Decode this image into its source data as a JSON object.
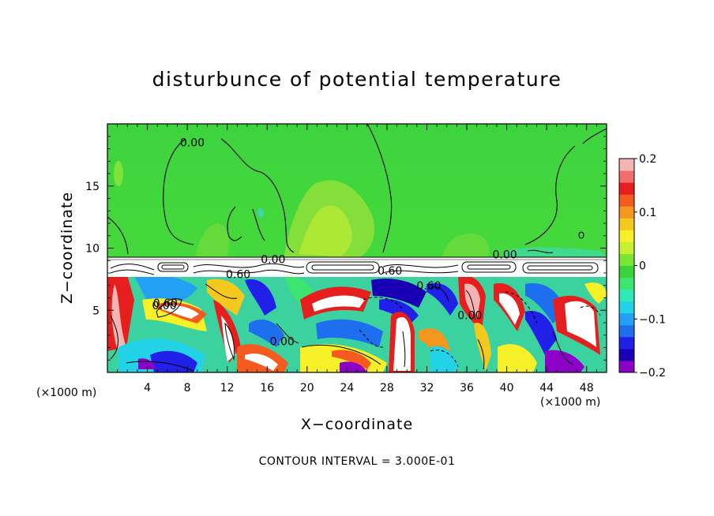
{
  "chart_data": {
    "type": "heatmap",
    "title": "disturbunce of potential temperature",
    "xlabel": "X−coordinate",
    "ylabel": "Z−coordinate",
    "x_unit_left": "(×1000 m)",
    "x_unit_right": "(×1000 m)",
    "xlim": [
      0,
      50
    ],
    "ylim": [
      0,
      20
    ],
    "x_ticks": [
      4,
      8,
      12,
      16,
      20,
      24,
      28,
      32,
      36,
      40,
      44,
      48
    ],
    "y_ticks": [
      5,
      10,
      15
    ],
    "colorbar": {
      "range": [
        -0.2,
        0.2
      ],
      "tick_values": [
        -0.2,
        -0.1,
        0,
        0.1,
        0.2
      ],
      "tick_labels": [
        "−0.2",
        "−0.1",
        "0",
        "0.1",
        "0.2"
      ],
      "colors": [
        "#8c00c8",
        "#1a00b4",
        "#2020e8",
        "#1e6ef0",
        "#21a0f5",
        "#22d2e6",
        "#2fe8b8",
        "#3ce66e",
        "#3cd23c",
        "#78e632",
        "#c8f032",
        "#f5f028",
        "#f5c81e",
        "#f5961e",
        "#f55a1e",
        "#e61e1e",
        "#f06e6e",
        "#f5b4b4"
      ]
    },
    "contour_labels": [
      {
        "text": "0.00",
        "x": 8.5,
        "z": 18.5
      },
      {
        "text": "0.00",
        "x": 16.6,
        "z": 9.1
      },
      {
        "text": "0.60",
        "x": 13.1,
        "z": 7.9
      },
      {
        "text": "0.60",
        "x": 5.8,
        "z": 5.6
      },
      {
        "text": "0.00",
        "x": 17.5,
        "z": 2.5
      },
      {
        "text": "0.00",
        "x": 39.8,
        "z": 9.5
      },
      {
        "text": "0.60",
        "x": 28.3,
        "z": 8.2
      },
      {
        "text": "0.60",
        "x": 32.2,
        "z": 7.0
      },
      {
        "text": "0.00",
        "x": 36.3,
        "z": 4.6
      },
      {
        "text": "0.00",
        "x": 5.7,
        "z": 5.4
      }
    ],
    "contour_interval_label": "CONTOUR INTERVAL =  3.000E-01"
  }
}
